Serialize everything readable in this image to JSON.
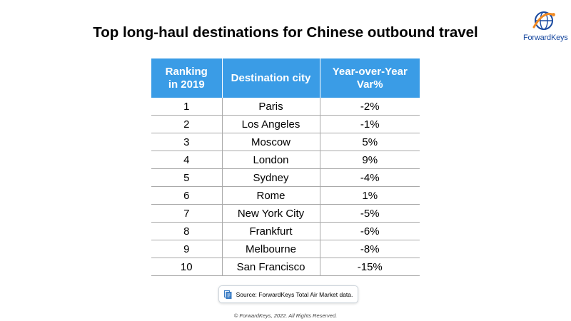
{
  "title": "Top long-haul destinations for Chinese outbound travel",
  "logo": {
    "text": "ForwardKeys"
  },
  "table": {
    "headers": {
      "rank_line1": "Ranking",
      "rank_line2": "in 2019",
      "city": "Destination city",
      "var_line1": "Year-over-Year",
      "var_line2": "Var%"
    },
    "rows": [
      {
        "rank": "1",
        "city": "Paris",
        "var": "-2%"
      },
      {
        "rank": "2",
        "city": "Los Angeles",
        "var": "-1%"
      },
      {
        "rank": "3",
        "city": "Moscow",
        "var": "5%"
      },
      {
        "rank": "4",
        "city": "London",
        "var": "9%"
      },
      {
        "rank": "5",
        "city": "Sydney",
        "var": "-4%"
      },
      {
        "rank": "6",
        "city": "Rome",
        "var": "1%"
      },
      {
        "rank": "7",
        "city": "New York City",
        "var": "-5%"
      },
      {
        "rank": "8",
        "city": "Frankfurt",
        "var": "-6%"
      },
      {
        "rank": "9",
        "city": "Melbourne",
        "var": "-8%"
      },
      {
        "rank": "10",
        "city": "San Francisco",
        "var": "-15%"
      }
    ]
  },
  "source": "Source: ForwardKeys Total Air Market data.",
  "copyright": "© ForwardKeys, 2022. All Rights Reserved.",
  "colors": {
    "header_bg": "#3a9ce6",
    "logo_blue": "#1a4aa0",
    "logo_orange": "#f08a24"
  }
}
